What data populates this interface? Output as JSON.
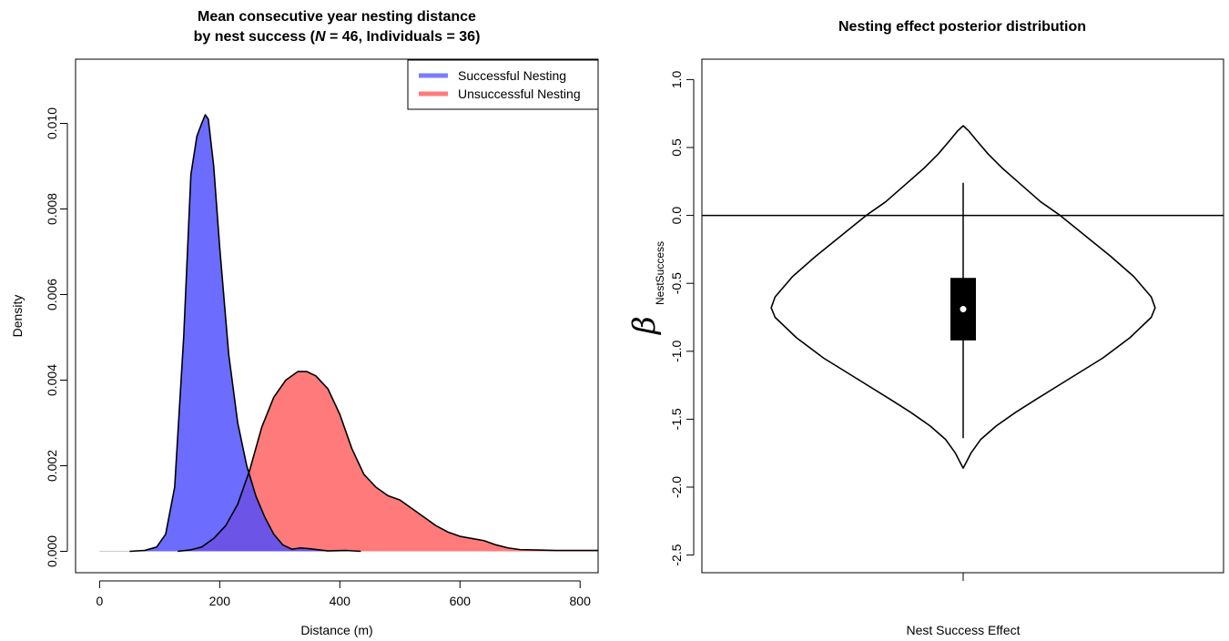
{
  "chart_data": [
    {
      "type": "area",
      "title": "Mean consecutive year nesting distance",
      "title_line2_prefix": "by nest success (",
      "title_N_symbol": "N",
      "title_line2_suffix": " = 46, Individuals = 36)",
      "xlabel": "Distance (m)",
      "ylabel": "Density",
      "xlim": [
        -40,
        830
      ],
      "ylim": [
        -0.0005,
        0.0115
      ],
      "xticks": [
        "0",
        "200",
        "400",
        "600",
        "800"
      ],
      "xtick_values": [
        0,
        200,
        400,
        600,
        800
      ],
      "yticks": [
        "0.000",
        "0.002",
        "0.004",
        "0.006",
        "0.008",
        "0.010"
      ],
      "ytick_values": [
        0,
        0.002,
        0.004,
        0.006,
        0.008,
        0.01
      ],
      "legend_position": "top-right",
      "series": [
        {
          "name": "Successful Nesting",
          "color": "#7b7bff",
          "x": [
            50,
            75,
            95,
            110,
            125,
            140,
            152,
            162,
            170,
            176,
            181,
            190,
            200,
            215,
            230,
            245,
            260,
            275,
            290,
            305,
            320,
            335,
            350,
            380,
            410,
            435
          ],
          "y": [
            0,
            2e-05,
            0.0001,
            0.0004,
            0.0015,
            0.005,
            0.0088,
            0.0097,
            0.01,
            0.0102,
            0.0101,
            0.009,
            0.0071,
            0.0046,
            0.003,
            0.002,
            0.0013,
            0.0008,
            0.0004,
            0.00015,
            5e-05,
            8e-05,
            6e-05,
            1e-05,
            2e-05,
            0
          ]
        },
        {
          "name": "Unsuccessful Nesting",
          "color": "#ff7b7b",
          "x": [
            130,
            150,
            170,
            190,
            210,
            230,
            250,
            270,
            290,
            310,
            330,
            345,
            360,
            380,
            400,
            420,
            440,
            460,
            480,
            500,
            520,
            540,
            560,
            580,
            600,
            620,
            640,
            660,
            680,
            700,
            730,
            760,
            800,
            830
          ],
          "y": [
            0,
            3e-05,
            0.0001,
            0.0003,
            0.0006,
            0.0011,
            0.0019,
            0.0029,
            0.0036,
            0.004,
            0.0042,
            0.0042,
            0.0041,
            0.0038,
            0.0032,
            0.0024,
            0.0018,
            0.0015,
            0.0013,
            0.0012,
            0.001,
            0.0008,
            0.0006,
            0.00045,
            0.00035,
            0.0003,
            0.00025,
            0.00015,
            8e-05,
            4e-05,
            3e-05,
            2e-05,
            2e-05,
            2e-05
          ]
        }
      ]
    },
    {
      "type": "violin",
      "title": "Nesting effect posterior distribution",
      "xlabel": "Nest Success Effect",
      "ylabel_symbol": "β",
      "ylabel_subscript": "NestSuccess",
      "ylim": [
        -2.63,
        1.15
      ],
      "yticks": [
        "-2.5",
        "-2.0",
        "-1.5",
        "-1.0",
        "-0.5",
        "0.0",
        "0.5",
        "1.0"
      ],
      "ytick_values": [
        -2.5,
        -2.0,
        -1.5,
        -1.0,
        -0.5,
        0.0,
        0.5,
        1.0
      ],
      "reference_line": 0.0,
      "violin": {
        "y": [
          0.66,
          0.62,
          0.55,
          0.45,
          0.35,
          0.25,
          0.1,
          0.0,
          -0.15,
          -0.3,
          -0.45,
          -0.6,
          -0.68,
          -0.75,
          -0.9,
          -1.05,
          -1.2,
          -1.35,
          -1.45,
          -1.55,
          -1.65,
          -1.75,
          -1.82,
          -1.86
        ],
        "half_width": [
          0.0,
          0.03,
          0.07,
          0.13,
          0.2,
          0.28,
          0.4,
          0.5,
          0.63,
          0.76,
          0.88,
          0.97,
          0.99,
          0.97,
          0.86,
          0.72,
          0.55,
          0.38,
          0.27,
          0.17,
          0.09,
          0.04,
          0.015,
          0.0
        ]
      },
      "box": {
        "q1": -0.92,
        "q3": -0.46,
        "median": -0.69,
        "whisker_low": -1.64,
        "whisker_high": 0.24
      }
    }
  ]
}
